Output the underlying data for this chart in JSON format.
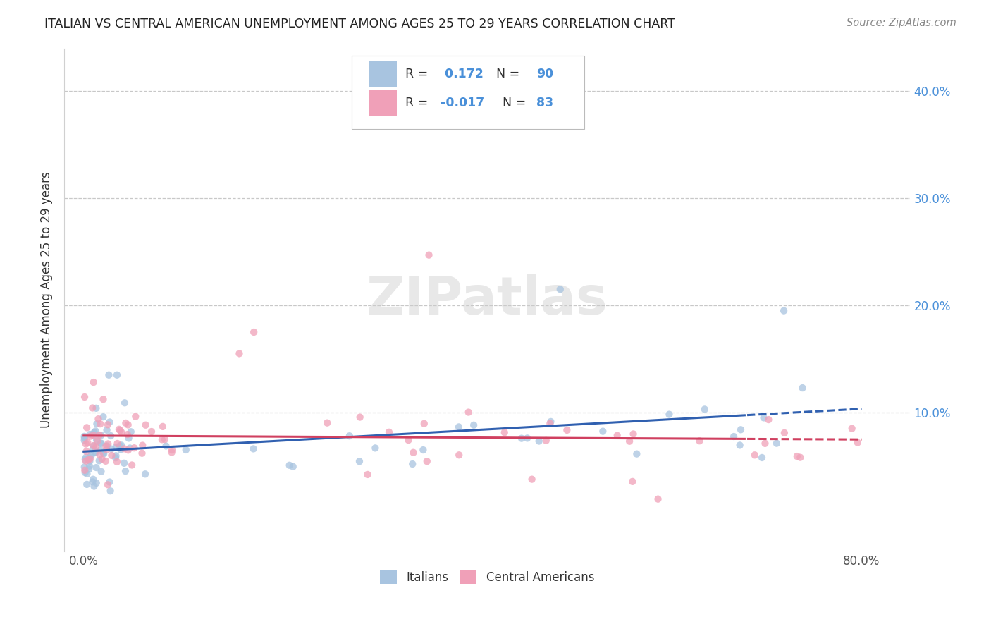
{
  "title": "ITALIAN VS CENTRAL AMERICAN UNEMPLOYMENT AMONG AGES 25 TO 29 YEARS CORRELATION CHART",
  "source": "Source: ZipAtlas.com",
  "ylabel": "Unemployment Among Ages 25 to 29 years",
  "xlim": [
    -0.02,
    0.85
  ],
  "ylim": [
    -0.03,
    0.44
  ],
  "italian_color": "#a8c4e0",
  "central_american_color": "#f0a0b8",
  "italian_line_color": "#3060b0",
  "central_american_line_color": "#d04060",
  "italian_R": 0.172,
  "italian_N": 90,
  "central_american_R": -0.017,
  "central_american_N": 83,
  "watermark": "ZIPatlas",
  "background_color": "#ffffff",
  "grid_color": "#c8c8c8",
  "tick_label_color": "#4a90d9",
  "legend_label_italian": "Italians",
  "legend_label_central": "Central Americans",
  "scatter_size": 55,
  "scatter_alpha": 0.75
}
